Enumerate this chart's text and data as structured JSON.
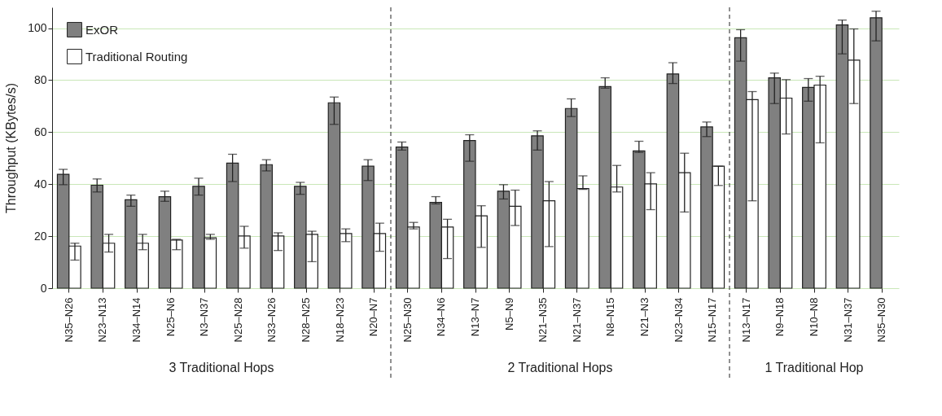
{
  "chart_data": {
    "type": "bar",
    "ylabel": "Throughput (KBytes/s)",
    "categories": [
      "N35–N26",
      "N23–N13",
      "N34–N14",
      "N25–N6",
      "N3–N37",
      "N25–N28",
      "N33–N26",
      "N28–N25",
      "N18–N23",
      "N20–N7",
      "N25–N30",
      "N34–N6",
      "N13–N7",
      "N5–N9",
      "N21–N35",
      "N21–N37",
      "N8–N15",
      "N21–N3",
      "N23–N34",
      "N15–N17",
      "N13–N17",
      "N9–N18",
      "N10–N8",
      "N31–N37",
      "N35–N30"
    ],
    "series": [
      {
        "name": "ExOR",
        "color": "#808080",
        "values": [
          43.8,
          39.6,
          34.0,
          35.2,
          39.2,
          48.1,
          47.5,
          39.2,
          71.3,
          46.9,
          54.3,
          33.0,
          56.8,
          37.3,
          58.6,
          69.1,
          77.5,
          52.8,
          82.4,
          62.0,
          96.3,
          80.9,
          77.2,
          101.2,
          104.0
        ],
        "errors": [
          [
            39.8,
            45.7
          ],
          [
            37.0,
            42.0
          ],
          [
            31.5,
            35.8
          ],
          [
            33.4,
            37.3
          ],
          [
            35.8,
            42.3
          ],
          [
            41.0,
            51.5
          ],
          [
            45.1,
            49.4
          ],
          [
            36.1,
            40.7
          ],
          [
            63.0,
            73.5
          ],
          [
            41.4,
            49.4
          ],
          [
            53.1,
            56.2
          ],
          [
            32.4,
            35.2
          ],
          [
            48.8,
            59.0
          ],
          [
            34.3,
            39.8
          ],
          [
            53.1,
            60.5
          ],
          [
            66.0,
            72.8
          ],
          [
            76.9,
            80.9
          ],
          [
            52.2,
            56.5
          ],
          [
            78.7,
            86.7
          ],
          [
            58.3,
            63.9
          ],
          [
            87.3,
            99.4
          ],
          [
            71.0,
            82.7
          ],
          [
            71.9,
            80.6
          ],
          [
            90.1,
            103.1
          ],
          [
            95.1,
            106.5
          ]
        ]
      },
      {
        "name": "Traditional Routing",
        "color": "#ffffff",
        "values": [
          16.2,
          17.3,
          17.3,
          18.5,
          19.4,
          20.1,
          20.1,
          20.7,
          21.0,
          21.0,
          23.5,
          23.5,
          27.8,
          31.5,
          33.6,
          38.3,
          38.9,
          40.1,
          44.4,
          46.9,
          72.5,
          73.1,
          78.1,
          87.7,
          null
        ],
        "errors": [
          [
            10.8,
            17.3
          ],
          [
            13.9,
            20.7
          ],
          [
            14.8,
            20.7
          ],
          [
            14.8,
            18.8
          ],
          [
            18.8,
            20.7
          ],
          [
            15.4,
            23.8
          ],
          [
            14.5,
            21.3
          ],
          [
            10.2,
            21.9
          ],
          [
            17.9,
            22.8
          ],
          [
            14.2,
            25.0
          ],
          [
            22.8,
            25.3
          ],
          [
            11.4,
            26.5
          ],
          [
            15.7,
            31.7
          ],
          [
            24.1,
            37.7
          ],
          [
            16.0,
            41.0
          ],
          [
            38.0,
            43.2
          ],
          [
            37.0,
            47.2
          ],
          [
            30.2,
            44.4
          ],
          [
            29.3,
            51.9
          ],
          [
            39.5,
            46.9
          ],
          [
            33.6,
            75.6
          ],
          [
            59.3,
            80.2
          ],
          [
            55.9,
            81.5
          ],
          [
            71.0,
            99.7
          ],
          null
        ]
      }
    ],
    "ylim": [
      0,
      108
    ],
    "yticks": [
      0,
      20,
      40,
      60,
      80,
      100
    ],
    "grid": "y",
    "legend": "top left",
    "annotations": [
      "3 Traditional Hops",
      "2 Traditional Hops",
      "1 Traditional Hop"
    ]
  }
}
